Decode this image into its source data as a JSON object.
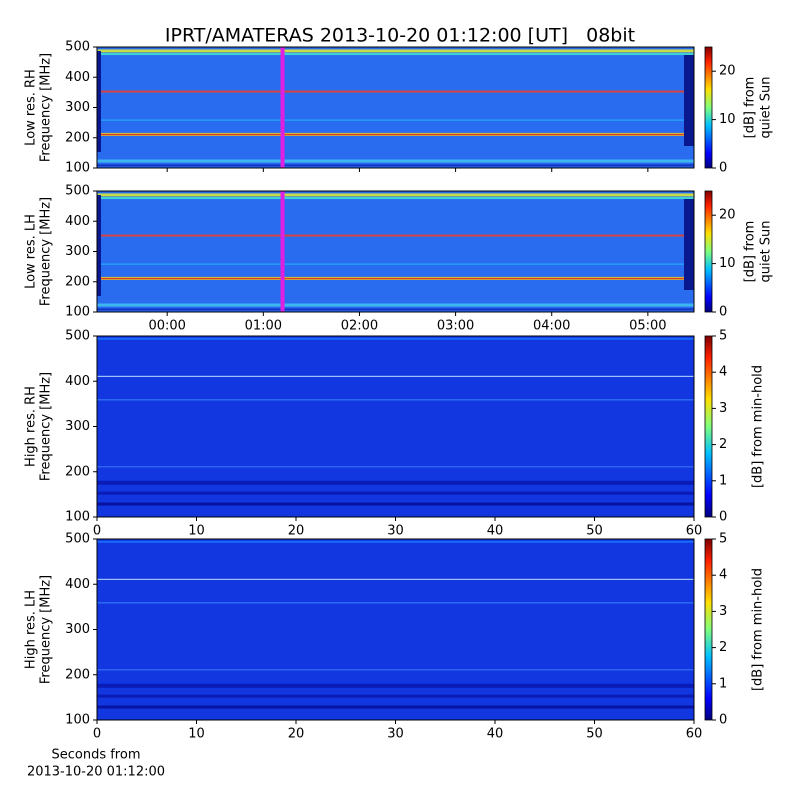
{
  "title": "IPRT/AMATERAS 2013-10-20 01:12:00 [UT]   08bit",
  "chart_data": [
    {
      "type": "heatmap",
      "ylabel": [
        "Low res. RH",
        "Frequency [MHz]"
      ],
      "xlim": [
        -0.73,
        5.48
      ],
      "xticks": [
        0,
        1,
        2,
        3,
        4,
        5
      ],
      "ylim": [
        100,
        500
      ],
      "yticks": [
        100,
        200,
        300,
        400,
        500
      ],
      "marker_x": 1.2,
      "marker_color": "#e020e0",
      "colorbar": {
        "label": [
          "[dB] from",
          "quiet Sun"
        ],
        "lim": [
          0,
          25
        ],
        "ticks": [
          0,
          10,
          20
        ]
      }
    },
    {
      "type": "heatmap",
      "ylabel": [
        "Low res. LH",
        "Frequency [MHz]"
      ],
      "xlim": [
        -0.73,
        5.48
      ],
      "xticks": [
        {
          "value": 0,
          "label": "00:00"
        },
        {
          "value": 1,
          "label": "01:00"
        },
        {
          "value": 2,
          "label": "02:00"
        },
        {
          "value": 3,
          "label": "03:00"
        },
        {
          "value": 4,
          "label": "04:00"
        },
        {
          "value": 5,
          "label": "05:00"
        }
      ],
      "ylim": [
        100,
        500
      ],
      "yticks": [
        100,
        200,
        300,
        400,
        500
      ],
      "marker_x": 1.2,
      "marker_color": "#e020e0",
      "colorbar": {
        "label": [
          "[dB] from",
          "quiet Sun"
        ],
        "lim": [
          0,
          25
        ],
        "ticks": [
          0,
          10,
          20
        ]
      }
    },
    {
      "type": "heatmap",
      "ylabel": [
        "High res. RH",
        "Frequency [MHz]"
      ],
      "xlim": [
        0,
        60
      ],
      "xticks": [
        0,
        10,
        20,
        30,
        40,
        50,
        60
      ],
      "ylim": [
        100,
        500
      ],
      "yticks": [
        100,
        200,
        300,
        400,
        500
      ],
      "colorbar": {
        "label": [
          "[dB] from min-hold"
        ],
        "lim": [
          0,
          5
        ],
        "ticks": [
          0,
          1,
          2,
          3,
          4,
          5
        ]
      }
    },
    {
      "type": "heatmap",
      "ylabel": [
        "High res. LH",
        "Frequency [MHz]"
      ],
      "xlim": [
        0,
        60
      ],
      "xticks": [
        0,
        10,
        20,
        30,
        40,
        50,
        60
      ],
      "ylim": [
        100,
        500
      ],
      "yticks": [
        100,
        200,
        300,
        400,
        500
      ],
      "xlabel": [
        "Seconds from",
        "2013-10-20 01:12:00"
      ],
      "colorbar": {
        "label": [
          "[dB] from min-hold"
        ],
        "lim": [
          0,
          5
        ],
        "ticks": [
          0,
          1,
          2,
          3,
          4,
          5
        ]
      }
    }
  ]
}
